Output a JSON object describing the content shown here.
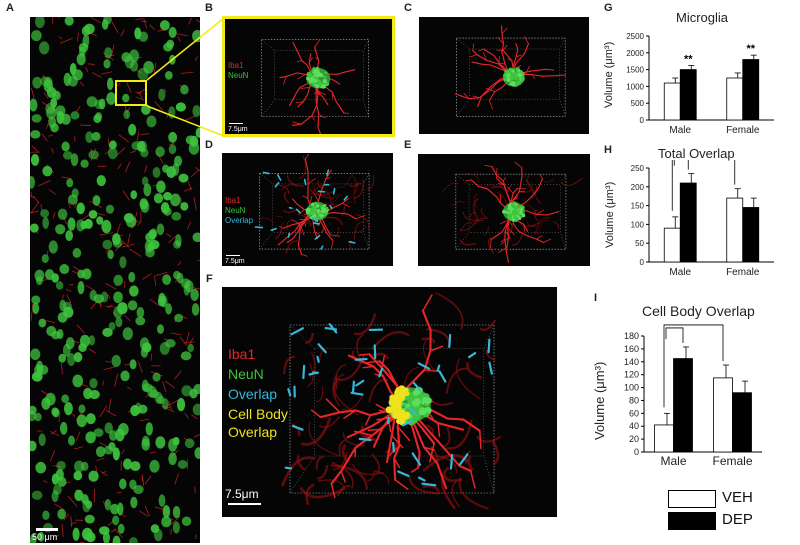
{
  "panels": {
    "a": "A",
    "b": "B",
    "c": "C",
    "d": "D",
    "e": "E",
    "f": "F",
    "g": "G",
    "h": "H",
    "i": "I"
  },
  "scalebars": {
    "a": "50 μm",
    "b": "7.5μm",
    "d": "7.5μm",
    "f": "7.5μm"
  },
  "legends": {
    "b": [
      "Iba1",
      "NeuN"
    ],
    "d": [
      "Iba1",
      "NeuN",
      "Overlap"
    ],
    "f": [
      "Iba1",
      "NeuN",
      "Overlap",
      "Cell Body",
      "Overlap"
    ]
  },
  "colors": {
    "iba1": "#e8262a",
    "neun": "#3ec43e",
    "overlap": "#35b8d9",
    "cellbody": "#ede21c",
    "highlight": "#f2ea15",
    "veh": "#ffffff",
    "dep": "#000000"
  },
  "key": {
    "veh": "VEH",
    "dep": "DEP"
  },
  "chart_data": [
    {
      "type": "bar",
      "title": "Microglia",
      "ylabel": "Volume (μm³)",
      "categories": [
        "Male",
        "Female"
      ],
      "series": [
        {
          "name": "VEH",
          "values": [
            1100,
            1250
          ],
          "errors": [
            150,
            150
          ]
        },
        {
          "name": "DEP",
          "values": [
            1500,
            1800
          ],
          "errors": [
            120,
            130
          ]
        }
      ],
      "ylim": [
        0,
        2500
      ],
      "yticks": [
        0,
        500,
        1000,
        1500,
        2000,
        2500
      ],
      "annotations": [
        "**",
        "**"
      ]
    },
    {
      "type": "bar",
      "title": "Total Overlap",
      "ylabel": "Volume (μm³)",
      "categories": [
        "Male",
        "Female"
      ],
      "series": [
        {
          "name": "VEH",
          "values": [
            90,
            170
          ],
          "errors": [
            30,
            25
          ]
        },
        {
          "name": "DEP",
          "values": [
            210,
            145
          ],
          "errors": [
            25,
            25
          ]
        }
      ],
      "ylim": [
        0,
        250
      ],
      "yticks": [
        0,
        50,
        100,
        150,
        200,
        250
      ],
      "annotations": [
        "*"
      ]
    },
    {
      "type": "bar",
      "title": "Cell Body Overlap",
      "ylabel": "Volume (μm³)",
      "categories": [
        "Male",
        "Female"
      ],
      "series": [
        {
          "name": "VEH",
          "values": [
            42,
            115
          ],
          "errors": [
            18,
            20
          ]
        },
        {
          "name": "DEP",
          "values": [
            145,
            92
          ],
          "errors": [
            18,
            18
          ]
        }
      ],
      "ylim": [
        0,
        180
      ],
      "yticks": [
        0,
        20,
        40,
        60,
        80,
        100,
        120,
        140,
        160,
        180
      ],
      "annotations": [
        "*"
      ]
    }
  ]
}
